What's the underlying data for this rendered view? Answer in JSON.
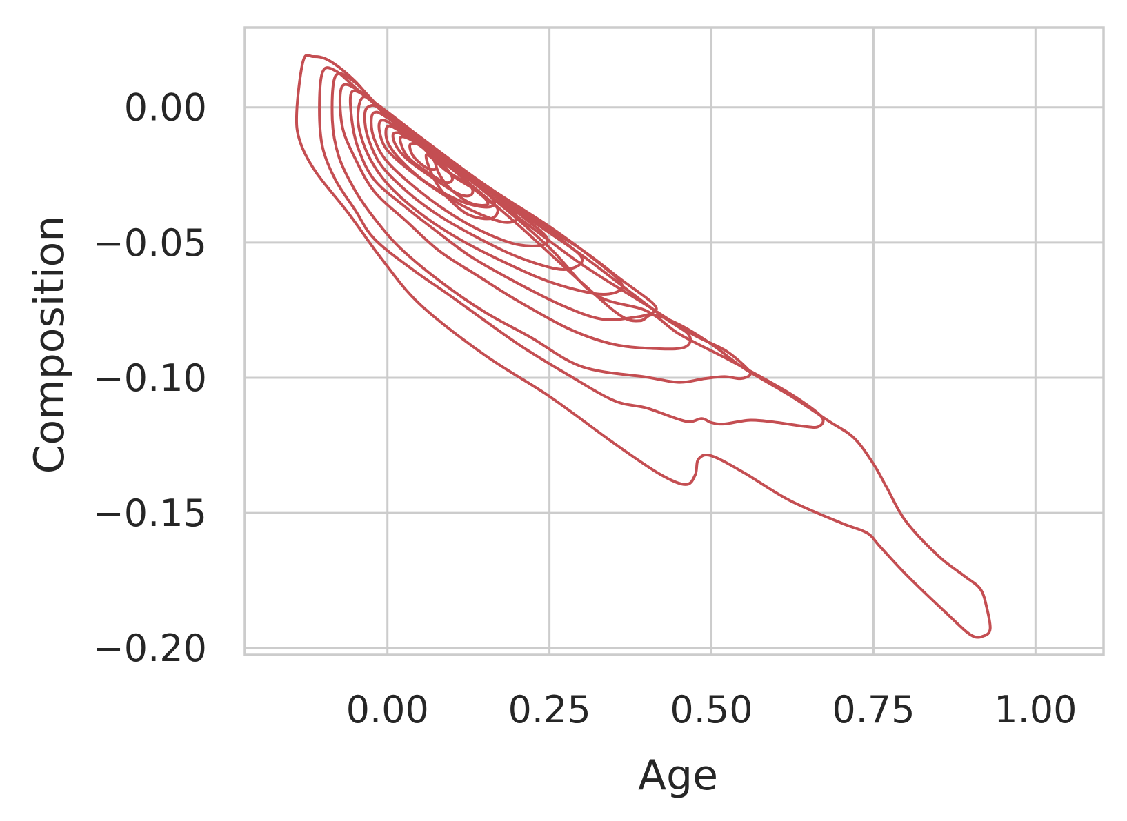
{
  "chart_data": {
    "type": "contour",
    "xlabel": "Age",
    "ylabel": "Composition",
    "xlim": [
      -0.22,
      1.105
    ],
    "ylim": [
      -0.2025,
      0.0295
    ],
    "xticks": [
      0.0,
      0.25,
      0.5,
      0.75,
      1.0
    ],
    "xtick_labels": [
      "0.00",
      "0.25",
      "0.50",
      "0.75",
      "1.00"
    ],
    "yticks": [
      0.0,
      -0.05,
      -0.1,
      -0.15,
      -0.2
    ],
    "ytick_labels": [
      "0.00",
      "−0.05",
      "−0.10",
      "−0.15",
      "−0.20"
    ],
    "grid": true,
    "color": "#c44e52",
    "levels": [
      {
        "name": "level-1",
        "points": [
          [
            -0.13,
            0.0172
          ],
          [
            -0.115,
            0.0188
          ],
          [
            -0.09,
            0.0173
          ],
          [
            -0.05,
            0.0097
          ],
          [
            0.0,
            -0.0035
          ],
          [
            0.1,
            -0.0229
          ],
          [
            0.2,
            -0.0431
          ],
          [
            0.3,
            -0.0649
          ],
          [
            0.36,
            -0.0771
          ],
          [
            0.39,
            -0.0789
          ],
          [
            0.41,
            -0.0768
          ],
          [
            0.45,
            -0.0803
          ],
          [
            0.5,
            -0.0876
          ],
          [
            0.55,
            -0.0965
          ],
          [
            0.62,
            -0.1064
          ],
          [
            0.68,
            -0.1159
          ],
          [
            0.72,
            -0.1223
          ],
          [
            0.75,
            -0.1319
          ],
          [
            0.77,
            -0.1404
          ],
          [
            0.8,
            -0.1531
          ],
          [
            0.85,
            -0.1659
          ],
          [
            0.89,
            -0.1733
          ],
          [
            0.915,
            -0.1782
          ],
          [
            0.925,
            -0.1853
          ],
          [
            0.93,
            -0.1929
          ],
          [
            0.92,
            -0.1955
          ],
          [
            0.9,
            -0.1951
          ],
          [
            0.86,
            -0.1865
          ],
          [
            0.8,
            -0.1727
          ],
          [
            0.76,
            -0.1624
          ],
          [
            0.74,
            -0.1574
          ],
          [
            0.7,
            -0.1537
          ],
          [
            0.62,
            -0.1453
          ],
          [
            0.55,
            -0.1351
          ],
          [
            0.5,
            -0.1289
          ],
          [
            0.48,
            -0.1301
          ],
          [
            0.475,
            -0.1359
          ],
          [
            0.46,
            -0.1395
          ],
          [
            0.42,
            -0.1356
          ],
          [
            0.35,
            -0.1243
          ],
          [
            0.25,
            -0.1069
          ],
          [
            0.15,
            -0.0916
          ],
          [
            0.05,
            -0.0728
          ],
          [
            -0.01,
            -0.0557
          ],
          [
            -0.06,
            -0.0392
          ],
          [
            -0.11,
            -0.0241
          ],
          [
            -0.135,
            -0.0126
          ],
          [
            -0.14,
            -0.0018
          ],
          [
            -0.13,
            0.0172
          ]
        ]
      },
      {
        "name": "level-2",
        "points": [
          [
            -0.1,
            0.0131
          ],
          [
            -0.08,
            0.0135
          ],
          [
            -0.04,
            0.0053
          ],
          [
            0.05,
            -0.0128
          ],
          [
            0.15,
            -0.0312
          ],
          [
            0.25,
            -0.0519
          ],
          [
            0.32,
            -0.0692
          ],
          [
            0.4,
            -0.0753
          ],
          [
            0.45,
            -0.0838
          ],
          [
            0.52,
            -0.0925
          ],
          [
            0.58,
            -0.1002
          ],
          [
            0.63,
            -0.1072
          ],
          [
            0.67,
            -0.1145
          ],
          [
            0.665,
            -0.1181
          ],
          [
            0.64,
            -0.1179
          ],
          [
            0.6,
            -0.1165
          ],
          [
            0.56,
            -0.1157
          ],
          [
            0.52,
            -0.1171
          ],
          [
            0.5,
            -0.1166
          ],
          [
            0.485,
            -0.1151
          ],
          [
            0.46,
            -0.1161
          ],
          [
            0.4,
            -0.1112
          ],
          [
            0.35,
            -0.1085
          ],
          [
            0.28,
            -0.0991
          ],
          [
            0.2,
            -0.0873
          ],
          [
            0.1,
            -0.0702
          ],
          [
            0.04,
            -0.0602
          ],
          [
            -0.02,
            -0.0487
          ],
          [
            -0.05,
            -0.0379
          ],
          [
            -0.08,
            -0.0269
          ],
          [
            -0.1,
            -0.0149
          ],
          [
            -0.105,
            -0.0008
          ],
          [
            -0.1,
            0.0131
          ]
        ]
      },
      {
        "name": "level-3",
        "points": [
          [
            -0.08,
            0.0116
          ],
          [
            -0.05,
            0.0092
          ],
          [
            0.0,
            -0.0027
          ],
          [
            0.1,
            -0.0217
          ],
          [
            0.2,
            -0.0403
          ],
          [
            0.3,
            -0.0581
          ],
          [
            0.4,
            -0.0732
          ],
          [
            0.47,
            -0.0838
          ],
          [
            0.52,
            -0.0897
          ],
          [
            0.55,
            -0.0954
          ],
          [
            0.56,
            -0.0987
          ],
          [
            0.545,
            -0.1003
          ],
          [
            0.52,
            -0.0996
          ],
          [
            0.49,
            -0.1003
          ],
          [
            0.45,
            -0.1017
          ],
          [
            0.4,
            -0.0998
          ],
          [
            0.3,
            -0.0959
          ],
          [
            0.22,
            -0.0849
          ],
          [
            0.15,
            -0.0757
          ],
          [
            0.08,
            -0.0641
          ],
          [
            0.02,
            -0.0521
          ],
          [
            -0.02,
            -0.0411
          ],
          [
            -0.05,
            -0.0307
          ],
          [
            -0.075,
            -0.0182
          ],
          [
            -0.085,
            -0.0047
          ],
          [
            -0.08,
            0.0116
          ]
        ]
      },
      {
        "name": "level-4",
        "points": [
          [
            -0.07,
            0.0077
          ],
          [
            -0.04,
            0.0055
          ],
          [
            0.0,
            -0.0028
          ],
          [
            0.1,
            -0.0203
          ],
          [
            0.2,
            -0.0381
          ],
          [
            0.3,
            -0.0547
          ],
          [
            0.38,
            -0.0693
          ],
          [
            0.43,
            -0.0783
          ],
          [
            0.465,
            -0.0841
          ],
          [
            0.46,
            -0.0886
          ],
          [
            0.42,
            -0.0893
          ],
          [
            0.35,
            -0.0877
          ],
          [
            0.28,
            -0.0819
          ],
          [
            0.2,
            -0.0714
          ],
          [
            0.14,
            -0.0624
          ],
          [
            0.08,
            -0.0531
          ],
          [
            0.03,
            -0.0423
          ],
          [
            -0.02,
            -0.0312
          ],
          [
            -0.05,
            -0.0188
          ],
          [
            -0.07,
            -0.0066
          ],
          [
            -0.07,
            0.0077
          ]
        ]
      },
      {
        "name": "level-5",
        "points": [
          [
            -0.055,
            0.0057
          ],
          [
            -0.03,
            0.0035
          ],
          [
            0.0,
            -0.0028
          ],
          [
            0.1,
            -0.0202
          ],
          [
            0.2,
            -0.0374
          ],
          [
            0.3,
            -0.0527
          ],
          [
            0.36,
            -0.0636
          ],
          [
            0.41,
            -0.0726
          ],
          [
            0.41,
            -0.0758
          ],
          [
            0.38,
            -0.0777
          ],
          [
            0.33,
            -0.0783
          ],
          [
            0.27,
            -0.0733
          ],
          [
            0.2,
            -0.0649
          ],
          [
            0.13,
            -0.0554
          ],
          [
            0.08,
            -0.0466
          ],
          [
            0.03,
            -0.0373
          ],
          [
            -0.02,
            -0.0269
          ],
          [
            -0.045,
            -0.0152
          ],
          [
            -0.055,
            -0.0045
          ],
          [
            -0.055,
            0.0057
          ]
        ]
      },
      {
        "name": "level-6",
        "points": [
          [
            -0.04,
            0.0032
          ],
          [
            -0.02,
            0.0018
          ],
          [
            0.05,
            -0.0109
          ],
          [
            0.15,
            -0.0286
          ],
          [
            0.25,
            -0.0441
          ],
          [
            0.32,
            -0.0564
          ],
          [
            0.36,
            -0.0648
          ],
          [
            0.355,
            -0.0682
          ],
          [
            0.32,
            -0.0689
          ],
          [
            0.25,
            -0.0645
          ],
          [
            0.18,
            -0.0572
          ],
          [
            0.11,
            -0.0486
          ],
          [
            0.05,
            -0.0391
          ],
          [
            0.0,
            -0.0283
          ],
          [
            -0.03,
            -0.0175
          ],
          [
            -0.045,
            -0.0059
          ],
          [
            -0.04,
            0.0032
          ]
        ]
      },
      {
        "name": "level-7",
        "points": [
          [
            -0.03,
            0.0001
          ],
          [
            -0.01,
            -0.0005
          ],
          [
            0.05,
            -0.0116
          ],
          [
            0.15,
            -0.0286
          ],
          [
            0.22,
            -0.0399
          ],
          [
            0.275,
            -0.0502
          ],
          [
            0.3,
            -0.0557
          ],
          [
            0.29,
            -0.0591
          ],
          [
            0.26,
            -0.0597
          ],
          [
            0.2,
            -0.0552
          ],
          [
            0.14,
            -0.0483
          ],
          [
            0.08,
            -0.0401
          ],
          [
            0.03,
            -0.0311
          ],
          [
            -0.01,
            -0.0213
          ],
          [
            -0.03,
            -0.0112
          ],
          [
            -0.035,
            -0.0036
          ],
          [
            -0.03,
            0.0001
          ]
        ]
      },
      {
        "name": "level-8",
        "points": [
          [
            -0.02,
            -0.0019
          ],
          [
            0.0,
            -0.0039
          ],
          [
            0.08,
            -0.0174
          ],
          [
            0.16,
            -0.0314
          ],
          [
            0.21,
            -0.0407
          ],
          [
            0.245,
            -0.0478
          ],
          [
            0.24,
            -0.0509
          ],
          [
            0.2,
            -0.0507
          ],
          [
            0.15,
            -0.0463
          ],
          [
            0.1,
            -0.0397
          ],
          [
            0.05,
            -0.0311
          ],
          [
            0.0,
            -0.0202
          ],
          [
            -0.02,
            -0.0119
          ],
          [
            -0.025,
            -0.0055
          ],
          [
            -0.02,
            -0.0019
          ]
        ]
      },
      {
        "name": "level-9",
        "points": [
          [
            -0.01,
            -0.0049
          ],
          [
            0.01,
            -0.0067
          ],
          [
            0.08,
            -0.0181
          ],
          [
            0.15,
            -0.0299
          ],
          [
            0.19,
            -0.0376
          ],
          [
            0.2,
            -0.0413
          ],
          [
            0.18,
            -0.0425
          ],
          [
            0.14,
            -0.0392
          ],
          [
            0.09,
            -0.0328
          ],
          [
            0.04,
            -0.0244
          ],
          [
            0.0,
            -0.0159
          ],
          [
            -0.012,
            -0.0092
          ],
          [
            -0.01,
            -0.0049
          ]
        ]
      },
      {
        "name": "level-10",
        "points": [
          [
            0.0,
            -0.0071
          ],
          [
            0.02,
            -0.0089
          ],
          [
            0.08,
            -0.0189
          ],
          [
            0.14,
            -0.0289
          ],
          [
            0.165,
            -0.0351
          ],
          [
            0.15,
            -0.0369
          ],
          [
            0.11,
            -0.0344
          ],
          [
            0.06,
            -0.0278
          ],
          [
            0.02,
            -0.0194
          ],
          [
            0.0,
            -0.0126
          ],
          [
            0.0,
            -0.0071
          ]
        ]
      },
      {
        "name": "level-11",
        "points": [
          [
            0.01,
            -0.0096
          ],
          [
            0.03,
            -0.0109
          ],
          [
            0.08,
            -0.0193
          ],
          [
            0.125,
            -0.0279
          ],
          [
            0.13,
            -0.0322
          ],
          [
            0.11,
            -0.0321
          ],
          [
            0.07,
            -0.0261
          ],
          [
            0.03,
            -0.0191
          ],
          [
            0.012,
            -0.0136
          ],
          [
            0.01,
            -0.0096
          ]
        ]
      },
      {
        "name": "level-12",
        "points": [
          [
            0.02,
            -0.0113
          ],
          [
            0.04,
            -0.0125
          ],
          [
            0.08,
            -0.0198
          ],
          [
            0.1,
            -0.0259
          ],
          [
            0.09,
            -0.0278
          ],
          [
            0.06,
            -0.0237
          ],
          [
            0.03,
            -0.0179
          ],
          [
            0.02,
            -0.0113
          ]
        ]
      },
      {
        "name": "level-13",
        "points": [
          [
            0.035,
            -0.0138
          ],
          [
            0.05,
            -0.0141
          ],
          [
            0.07,
            -0.0189
          ],
          [
            0.075,
            -0.0227
          ],
          [
            0.06,
            -0.0223
          ],
          [
            0.04,
            -0.0181
          ],
          [
            0.035,
            -0.0138
          ]
        ]
      },
      {
        "name": "level-14",
        "points": [
          [
            0.06,
            -0.0175
          ],
          [
            0.09,
            -0.0233
          ],
          [
            0.12,
            -0.0278
          ],
          [
            0.15,
            -0.0335
          ],
          [
            0.17,
            -0.0375
          ],
          [
            0.16,
            -0.0411
          ],
          [
            0.125,
            -0.0397
          ],
          [
            0.095,
            -0.0339
          ],
          [
            0.072,
            -0.0265
          ],
          [
            0.06,
            -0.0175
          ]
        ]
      },
      {
        "name": "level-15",
        "points": [
          [
            0.075,
            -0.0196
          ],
          [
            0.1,
            -0.0252
          ],
          [
            0.14,
            -0.0313
          ],
          [
            0.155,
            -0.0358
          ],
          [
            0.13,
            -0.0356
          ],
          [
            0.1,
            -0.0308
          ],
          [
            0.08,
            -0.0247
          ],
          [
            0.075,
            -0.0196
          ]
        ]
      }
    ]
  },
  "labels": {
    "xlabel": "Age",
    "ylabel": "Composition"
  }
}
